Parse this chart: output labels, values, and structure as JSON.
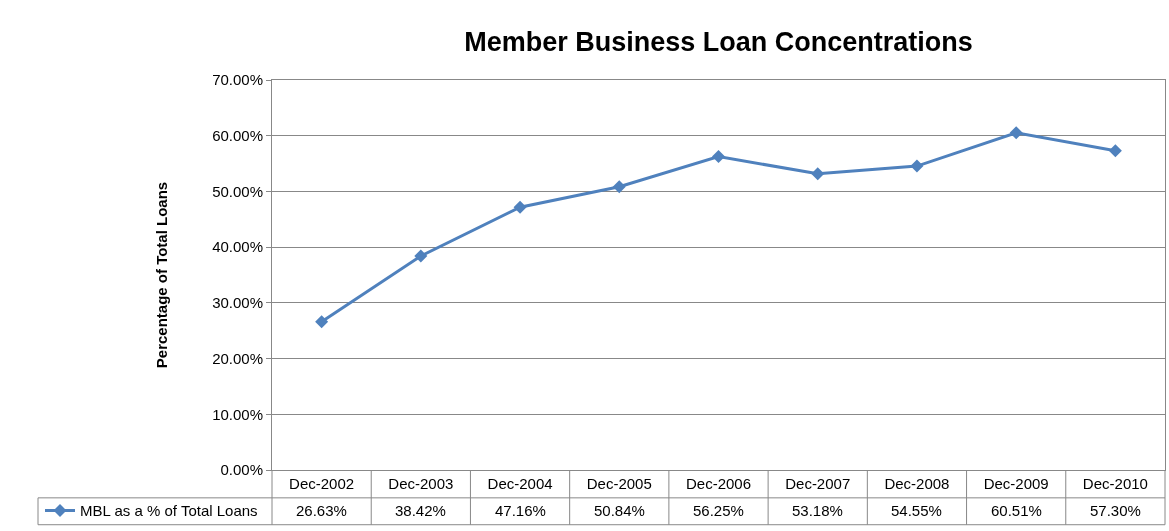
{
  "chart_data": {
    "type": "line",
    "title": "Member Business Loan Concentrations",
    "ylabel": "Percentage of Total Loans",
    "categories": [
      "Dec-2002",
      "Dec-2003",
      "Dec-2004",
      "Dec-2005",
      "Dec-2006",
      "Dec-2007",
      "Dec-2008",
      "Dec-2009",
      "Dec-2010"
    ],
    "series": [
      {
        "name": "MBL as a % of Total Loans",
        "color": "#4f81bd",
        "values": [
          26.63,
          38.42,
          47.16,
          50.84,
          56.25,
          53.18,
          54.55,
          60.51,
          57.3
        ],
        "value_labels": [
          "26.63%",
          "38.42%",
          "47.16%",
          "50.84%",
          "56.25%",
          "53.18%",
          "54.55%",
          "60.51%",
          "57.30%"
        ]
      }
    ],
    "ylim": [
      0,
      70
    ],
    "yticks": [
      {
        "value": 0,
        "label": "0.00%"
      },
      {
        "value": 10,
        "label": "10.00%"
      },
      {
        "value": 20,
        "label": "20.00%"
      },
      {
        "value": 30,
        "label": "30.00%"
      },
      {
        "value": 40,
        "label": "40.00%"
      },
      {
        "value": 50,
        "label": "50.00%"
      },
      {
        "value": 60,
        "label": "60.00%"
      },
      {
        "value": 70,
        "label": "70.00%"
      }
    ],
    "grid": "y",
    "legend": "bottom",
    "marker": "diamond",
    "line_style": "solid"
  }
}
